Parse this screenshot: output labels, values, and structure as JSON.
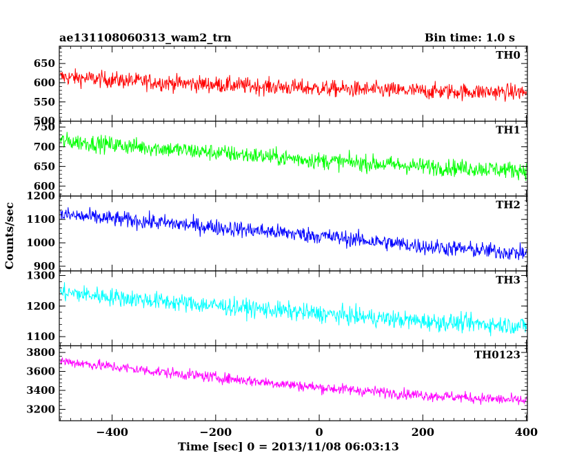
{
  "header": {
    "title": "ae131108060313_wam2_trn",
    "bin_time": "Bin time: 1.0 s"
  },
  "axes": {
    "ylabel": "Counts/sec",
    "xlabel": "Time [sec] 0 = 2013/11/08 06:03:13"
  },
  "chart_data": {
    "type": "line",
    "title": "ae131108060313_wam2_trn",
    "xlabel": "Time [sec] 0 = 2013/11/08 06:03:13",
    "ylabel": "Counts/sec",
    "xlim": [
      -502,
      402
    ],
    "x_ticks": [
      -400,
      -200,
      0,
      200,
      400
    ],
    "x_tick_labels": [
      "−400",
      "−200",
      "0",
      "200",
      "400"
    ],
    "bin_time_s": 1.0,
    "grid": false,
    "panels": [
      {
        "name": "TH0",
        "color": "#ff0000",
        "ylim": [
          500,
          695
        ],
        "yticks": [
          500,
          550,
          600,
          650
        ],
        "trend": {
          "x": [
            -500,
            -300,
            0,
            200,
            400
          ],
          "y": [
            615,
            600,
            585,
            578,
            575
          ]
        },
        "noise_amplitude": 28
      },
      {
        "name": "TH1",
        "color": "#00ff00",
        "ylim": [
          575,
          765
        ],
        "yticks": [
          600,
          650,
          700,
          750
        ],
        "trend": {
          "x": [
            -500,
            -300,
            0,
            200,
            400
          ],
          "y": [
            715,
            695,
            665,
            650,
            640
          ]
        },
        "noise_amplitude": 28
      },
      {
        "name": "TH2",
        "color": "#0000ff",
        "ylim": [
          880,
          1200
        ],
        "yticks": [
          900,
          1000,
          1100,
          1200
        ],
        "trend": {
          "x": [
            -500,
            -300,
            0,
            200,
            400
          ],
          "y": [
            1120,
            1085,
            1030,
            985,
            955
          ]
        },
        "noise_amplitude": 45
      },
      {
        "name": "TH3",
        "color": "#00ffff",
        "ylim": [
          1070,
          1315
        ],
        "yticks": [
          1100,
          1200,
          1300
        ],
        "trend": {
          "x": [
            -500,
            -300,
            0,
            200,
            400
          ],
          "y": [
            1245,
            1215,
            1175,
            1150,
            1135
          ]
        },
        "noise_amplitude": 38
      },
      {
        "name": "TH0123",
        "color": "#ff00ff",
        "ylim": [
          3080,
          3870
        ],
        "yticks": [
          3200,
          3400,
          3600,
          3800
        ],
        "trend": {
          "x": [
            -500,
            -300,
            0,
            200,
            400
          ],
          "y": [
            3710,
            3590,
            3430,
            3350,
            3290
          ]
        },
        "noise_amplitude": 75
      }
    ]
  }
}
